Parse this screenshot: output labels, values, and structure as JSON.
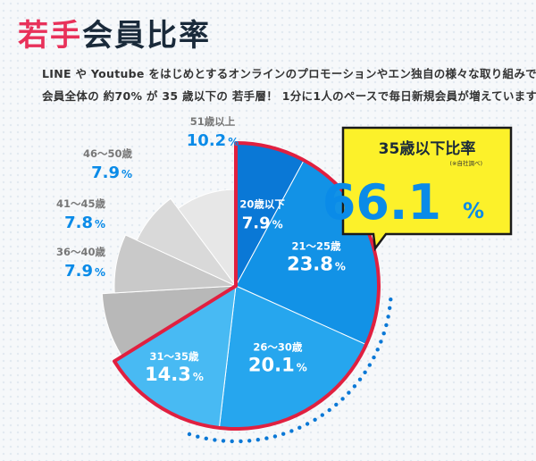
{
  "header": {
    "title_accent": "若手",
    "title_rest": "会員比率",
    "description_line1": "LINE や Youtube をはじめとするオンラインのプロモーションやエン独自の様々な取り組みで",
    "description_line2": "会員全体の 約70% が 35 歳以下の 若手層！ 1分に1人のペースで毎日新規会員が増えています。"
  },
  "callout": {
    "title": "35歳以下比率",
    "note": "(※自社調べ)",
    "value": "66.1",
    "unit": "%"
  },
  "colors": {
    "young_blue": "#0a78d6",
    "highlight_border": "#e02040",
    "callout_yellow": "#fcf12a",
    "value_blue": "#0a8be8"
  },
  "chart_data": {
    "type": "pie",
    "unit": "%",
    "slices": [
      {
        "label": "20歳以下",
        "value": 7.9,
        "color": "#0a78d6",
        "highlighted": true
      },
      {
        "label": "21～25歳",
        "value": 23.8,
        "color": "#1292e6",
        "highlighted": true
      },
      {
        "label": "26～30歳",
        "value": 20.1,
        "color": "#26a6ee",
        "highlighted": true
      },
      {
        "label": "31～35歳",
        "value": 14.3,
        "color": "#48baf3",
        "highlighted": true
      },
      {
        "label": "36～40歳",
        "value": 7.9,
        "color": "#b8b8b8",
        "highlighted": false
      },
      {
        "label": "41～45歳",
        "value": 7.8,
        "color": "#c9c9c9",
        "highlighted": false
      },
      {
        "label": "46～50歳",
        "value": 7.9,
        "color": "#d9d9d9",
        "highlighted": false
      },
      {
        "label": "51歳以上",
        "value": 10.2,
        "color": "#e7e7e7",
        "highlighted": false
      }
    ]
  }
}
